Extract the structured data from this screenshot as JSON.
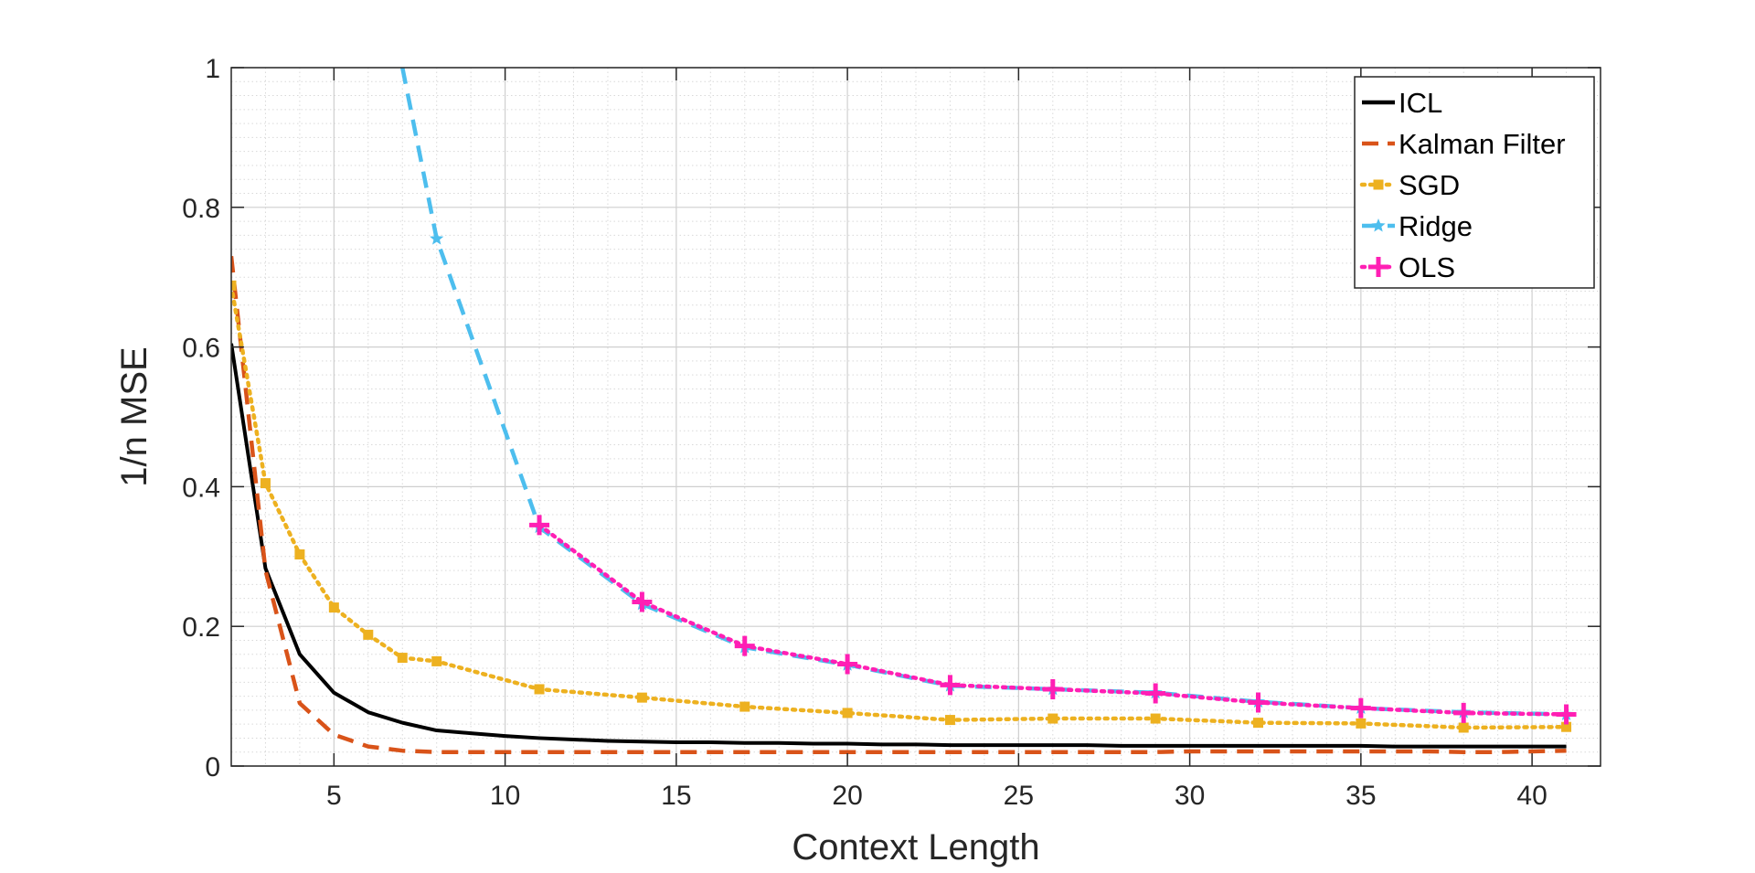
{
  "chart_data": {
    "type": "line",
    "xlabel": "Context Length",
    "ylabel": "1/n MSE",
    "xlim": [
      2,
      42
    ],
    "ylim": [
      0,
      1
    ],
    "x_ticks": [
      5,
      10,
      15,
      20,
      25,
      30,
      35,
      40
    ],
    "y_ticks": [
      0,
      0.2,
      0.4,
      0.6,
      0.8,
      1
    ],
    "y_tick_labels": [
      "0",
      "0.2",
      "0.4",
      "0.6",
      "0.8",
      "1"
    ],
    "grid": true,
    "minor_grid": true,
    "legend_position": "top-right",
    "series": [
      {
        "name": "ICL",
        "color": "#000000",
        "style": "solid",
        "marker": "none",
        "x": [
          2,
          3,
          4,
          5,
          6,
          7,
          8,
          9,
          10,
          11,
          12,
          13,
          14,
          15,
          16,
          17,
          18,
          19,
          20,
          21,
          22,
          23,
          24,
          25,
          26,
          27,
          28,
          29,
          30,
          31,
          32,
          33,
          34,
          35,
          36,
          37,
          38,
          39,
          40,
          41
        ],
        "y": [
          0.605,
          0.283,
          0.16,
          0.105,
          0.077,
          0.062,
          0.051,
          0.047,
          0.043,
          0.04,
          0.038,
          0.036,
          0.035,
          0.034,
          0.034,
          0.033,
          0.033,
          0.032,
          0.032,
          0.031,
          0.031,
          0.03,
          0.03,
          0.03,
          0.03,
          0.03,
          0.029,
          0.029,
          0.029,
          0.029,
          0.029,
          0.029,
          0.029,
          0.029,
          0.028,
          0.028,
          0.028,
          0.028,
          0.028,
          0.028
        ]
      },
      {
        "name": "Kalman Filter",
        "color": "#D95319",
        "style": "dashed",
        "marker": "none",
        "x": [
          2,
          3,
          4,
          5,
          6,
          7,
          8,
          9,
          10,
          11,
          12,
          13,
          14,
          15,
          16,
          17,
          18,
          19,
          20,
          21,
          22,
          23,
          24,
          25,
          26,
          27,
          28,
          29,
          30,
          31,
          32,
          33,
          34,
          35,
          36,
          37,
          38,
          39,
          40,
          41
        ],
        "y": [
          0.73,
          0.28,
          0.09,
          0.045,
          0.028,
          0.022,
          0.02,
          0.02,
          0.02,
          0.02,
          0.02,
          0.02,
          0.02,
          0.02,
          0.02,
          0.02,
          0.02,
          0.02,
          0.02,
          0.02,
          0.02,
          0.02,
          0.02,
          0.02,
          0.02,
          0.02,
          0.02,
          0.02,
          0.021,
          0.021,
          0.021,
          0.021,
          0.021,
          0.021,
          0.021,
          0.021,
          0.02,
          0.02,
          0.021,
          0.022
        ]
      },
      {
        "name": "SGD",
        "color": "#EDB120",
        "style": "dotted",
        "marker": "square",
        "x": [
          2,
          3,
          4,
          5,
          6,
          7,
          8,
          11,
          14,
          17,
          20,
          23,
          26,
          29,
          32,
          35,
          38,
          41
        ],
        "y": [
          0.688,
          0.405,
          0.303,
          0.227,
          0.188,
          0.155,
          0.15,
          0.11,
          0.098,
          0.085,
          0.076,
          0.066,
          0.068,
          0.068,
          0.062,
          0.061,
          0.055,
          0.056
        ]
      },
      {
        "name": "Ridge",
        "color": "#4DBEEE",
        "style": "dashed",
        "marker": "star",
        "x": [
          7,
          8,
          11,
          14,
          17,
          20,
          23,
          26,
          29,
          32,
          35,
          38,
          41
        ],
        "y": [
          1.0,
          0.755,
          0.342,
          0.232,
          0.17,
          0.145,
          0.115,
          0.11,
          0.105,
          0.092,
          0.083,
          0.077,
          0.074
        ]
      },
      {
        "name": "OLS",
        "color": "#FF1FB4",
        "style": "dotted",
        "marker": "plus",
        "x": [
          11,
          14,
          17,
          20,
          23,
          26,
          29,
          32,
          35,
          38,
          41
        ],
        "y": [
          0.345,
          0.235,
          0.172,
          0.146,
          0.116,
          0.11,
          0.104,
          0.091,
          0.083,
          0.076,
          0.074
        ]
      }
    ]
  }
}
